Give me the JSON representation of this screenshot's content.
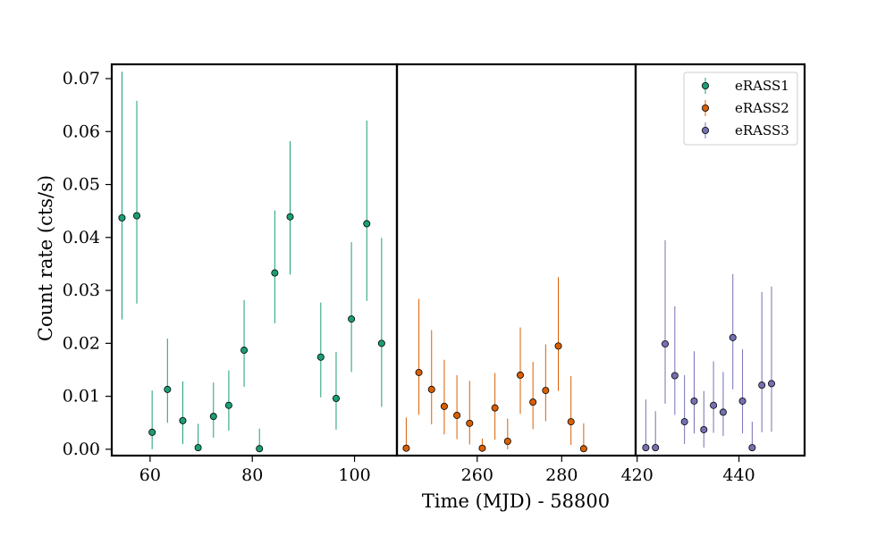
{
  "chart_data": {
    "type": "scatter",
    "ylabel": "Count rate (cts/s)",
    "xlabel": "Time (MJD) - 58800",
    "ylim": [
      -0.0012,
      0.0727
    ],
    "yticks": [
      "0.00",
      "0.01",
      "0.02",
      "0.03",
      "0.04",
      "0.05",
      "0.06",
      "0.07"
    ],
    "legend_position": "top-right",
    "panels": [
      {
        "xlim": [
          52.5,
          108.3
        ],
        "xticks": [
          60,
          80,
          100
        ],
        "series": [
          "eRASS1"
        ]
      },
      {
        "xlim": [
          241.0,
          297.5
        ],
        "xticks": [
          260,
          280
        ],
        "series": [
          "eRASS2"
        ]
      },
      {
        "xlim": [
          419.7,
          452.9
        ],
        "xticks": [
          420,
          440
        ],
        "series": [
          "eRASS3"
        ]
      }
    ],
    "series": [
      {
        "name": "eRASS1",
        "color": "#1b9e77",
        "x": [
          54.5,
          57.4,
          60.4,
          63.4,
          66.4,
          69.4,
          72.4,
          75.4,
          78.4,
          81.4,
          84.4,
          87.4,
          93.4,
          96.4,
          99.4,
          102.4,
          105.3
        ],
        "y": [
          0.0437,
          0.0441,
          0.0032,
          0.0113,
          0.0054,
          0.0003,
          0.0062,
          0.0083,
          0.0187,
          0.0001,
          0.0333,
          0.0439,
          0.0174,
          0.0096,
          0.0246,
          0.0426,
          0.02
        ],
        "yerr_low": [
          0.0192,
          0.0166,
          0.0032,
          0.0063,
          0.0044,
          0.0003,
          0.004,
          0.0048,
          0.0069,
          0.0001,
          0.0095,
          0.0109,
          0.0076,
          0.0059,
          0.01,
          0.0146,
          0.012
        ],
        "yerr_high": [
          0.0276,
          0.0217,
          0.0079,
          0.0096,
          0.0074,
          0.0045,
          0.0064,
          0.0066,
          0.0095,
          0.0038,
          0.0118,
          0.0143,
          0.0103,
          0.0088,
          0.0145,
          0.0195,
          0.0199
        ]
      },
      {
        "name": "eRASS2",
        "color": "#d95f02",
        "x": [
          243.2,
          246.2,
          249.2,
          252.2,
          255.2,
          258.2,
          261.2,
          264.2,
          267.2,
          270.2,
          273.2,
          276.2,
          279.2,
          282.2,
          285.2
        ],
        "y": [
          0.0002,
          0.0145,
          0.0113,
          0.0081,
          0.0064,
          0.0049,
          0.0002,
          0.0078,
          0.0015,
          0.014,
          0.0089,
          0.0111,
          0.0195,
          0.0052,
          0.0001
        ],
        "yerr_low": [
          0.0002,
          0.008,
          0.0066,
          0.0053,
          0.0045,
          0.004,
          0.0002,
          0.006,
          0.0015,
          0.0073,
          0.0051,
          0.0058,
          0.0085,
          0.0044,
          0.0001
        ],
        "yerr_high": [
          0.0058,
          0.0139,
          0.0112,
          0.0088,
          0.0076,
          0.008,
          0.0018,
          0.0066,
          0.0043,
          0.009,
          0.0076,
          0.0087,
          0.013,
          0.0086,
          0.0048
        ]
      },
      {
        "name": "eRASS3",
        "color": "#7570b3",
        "x": [
          421.7,
          423.6,
          425.5,
          427.4,
          429.3,
          431.2,
          433.1,
          435.0,
          436.9,
          438.8,
          440.7,
          442.6,
          444.5,
          446.4
        ],
        "y": [
          0.0003,
          0.0003,
          0.0199,
          0.0139,
          0.0052,
          0.0091,
          0.0037,
          0.0083,
          0.007,
          0.0211,
          0.0091,
          0.0003,
          0.0121,
          0.0124
        ],
        "yerr_low": [
          0.0003,
          0.0003,
          0.0113,
          0.0074,
          0.0042,
          0.0061,
          0.0034,
          0.0052,
          0.0045,
          0.0098,
          0.0061,
          0.0003,
          0.0089,
          0.0091
        ],
        "yerr_high": [
          0.0091,
          0.0069,
          0.0196,
          0.0131,
          0.0088,
          0.0094,
          0.0073,
          0.0083,
          0.0076,
          0.012,
          0.0098,
          0.0049,
          0.0176,
          0.0183
        ]
      }
    ]
  }
}
